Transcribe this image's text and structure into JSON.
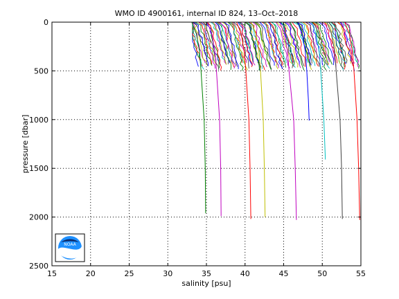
{
  "chart_data": {
    "type": "line",
    "title": "WMO ID 4900161, internal ID 824, 13–Oct–2018",
    "xlabel": "salinity [psu]",
    "ylabel": "pressure [dbar]",
    "xlim": [
      15,
      55
    ],
    "ylim": [
      0,
      2500
    ],
    "y_reversed": true,
    "grid": true,
    "xticks": [
      15,
      20,
      25,
      30,
      35,
      40,
      45,
      50,
      55
    ],
    "yticks": [
      0,
      500,
      1000,
      1500,
      2000,
      2500
    ],
    "series_colors": [
      "#0000ff",
      "#008000",
      "#ff0000",
      "#00bfbf",
      "#bf00bf",
      "#bfbf00",
      "#404040"
    ],
    "deep_profiles": [
      {
        "color": "#008000",
        "surface_x": 34.3,
        "points": [
          [
            34.3,
            500
          ],
          [
            34.7,
            1000
          ],
          [
            34.85,
            1500
          ],
          [
            34.9,
            1960
          ]
        ]
      },
      {
        "color": "#bf00bf",
        "surface_x": 36.3,
        "points": [
          [
            36.3,
            500
          ],
          [
            36.7,
            1000
          ],
          [
            36.85,
            1500
          ],
          [
            36.9,
            1990
          ]
        ]
      },
      {
        "color": "#ff0000",
        "surface_x": 40.1,
        "points": [
          [
            40.1,
            500
          ],
          [
            40.5,
            1000
          ],
          [
            40.65,
            1500
          ],
          [
            40.75,
            2020
          ]
        ]
      },
      {
        "color": "#bfbf00",
        "surface_x": 42.0,
        "points": [
          [
            42.0,
            500
          ],
          [
            42.35,
            1000
          ],
          [
            42.5,
            1500
          ],
          [
            42.6,
            2000
          ]
        ]
      },
      {
        "color": "#bf00bf",
        "surface_x": 45.7,
        "points": [
          [
            45.7,
            500
          ],
          [
            46.3,
            1000
          ],
          [
            46.5,
            1500
          ],
          [
            46.65,
            2030
          ]
        ]
      },
      {
        "color": "#0000ff",
        "surface_x": 48.0,
        "points": [
          [
            48.0,
            500
          ],
          [
            48.2,
            800
          ],
          [
            48.3,
            1010
          ]
        ]
      },
      {
        "color": "#00bfbf",
        "surface_x": 49.8,
        "points": [
          [
            49.8,
            500
          ],
          [
            50.2,
            1000
          ],
          [
            50.4,
            1410
          ]
        ]
      },
      {
        "color": "#404040",
        "surface_x": 51.8,
        "points": [
          [
            51.8,
            500
          ],
          [
            52.3,
            1000
          ],
          [
            52.5,
            1500
          ],
          [
            52.6,
            2020
          ]
        ]
      },
      {
        "color": "#ff0000",
        "surface_x": 54.1,
        "points": [
          [
            54.1,
            500
          ],
          [
            54.5,
            1000
          ],
          [
            54.7,
            1500
          ],
          [
            54.85,
            2030
          ]
        ]
      }
    ],
    "shallow_profiles": {
      "x_start": 33.4,
      "x_end": 55.0,
      "count": 110,
      "max_pressure": 500,
      "typical_range_psu": 2.5
    }
  }
}
